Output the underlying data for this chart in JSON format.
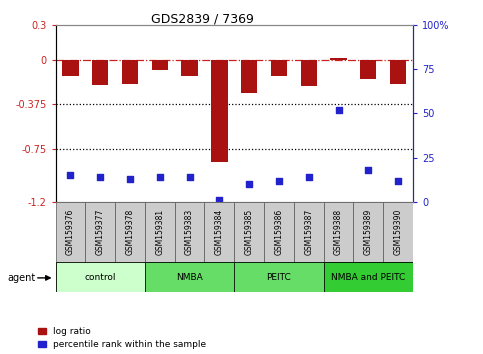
{
  "title": "GDS2839 / 7369",
  "samples": [
    "GSM159376",
    "GSM159377",
    "GSM159378",
    "GSM159381",
    "GSM159383",
    "GSM159384",
    "GSM159385",
    "GSM159386",
    "GSM159387",
    "GSM159388",
    "GSM159389",
    "GSM159390"
  ],
  "log_ratio": [
    -0.13,
    -0.21,
    -0.2,
    -0.08,
    -0.13,
    -0.86,
    -0.28,
    -0.13,
    -0.22,
    0.02,
    -0.16,
    -0.2
  ],
  "percentile_rank": [
    15,
    14,
    13,
    14,
    14,
    1,
    10,
    12,
    14,
    52,
    18,
    12
  ],
  "bar_color": "#aa1111",
  "dot_color": "#2222cc",
  "ylim_left": [
    -1.2,
    0.3
  ],
  "ylim_right": [
    0,
    100
  ],
  "yticks_left": [
    -1.2,
    -0.75,
    -0.375,
    0,
    0.3
  ],
  "yticks_right": [
    0,
    25,
    50,
    75,
    100
  ],
  "ytick_labels_left": [
    "-1.2",
    "-0.75",
    "-0.375",
    "0",
    "0.3"
  ],
  "ytick_labels_right": [
    "0",
    "25",
    "50",
    "75",
    "100%"
  ],
  "hline_y_left": [
    0,
    -0.375,
    -0.75
  ],
  "hline_styles": [
    "dashdot",
    "dotted",
    "dotted"
  ],
  "hline_colors": [
    "#cc2222",
    "#000000",
    "#000000"
  ],
  "groups": [
    {
      "label": "control",
      "start": 0,
      "end": 3,
      "color": "#ccffcc"
    },
    {
      "label": "NMBA",
      "start": 3,
      "end": 6,
      "color": "#66dd66"
    },
    {
      "label": "PEITC",
      "start": 6,
      "end": 9,
      "color": "#66dd66"
    },
    {
      "label": "NMBA and PEITC",
      "start": 9,
      "end": 12,
      "color": "#33cc33"
    }
  ],
  "agent_label": "agent",
  "legend_items": [
    {
      "color": "#aa1111",
      "label": "log ratio"
    },
    {
      "color": "#2222cc",
      "label": "percentile rank within the sample"
    }
  ],
  "bar_width": 0.55,
  "left_axis_color": "#cc2222",
  "right_axis_color": "#2222cc",
  "tick_box_color": "#cccccc"
}
